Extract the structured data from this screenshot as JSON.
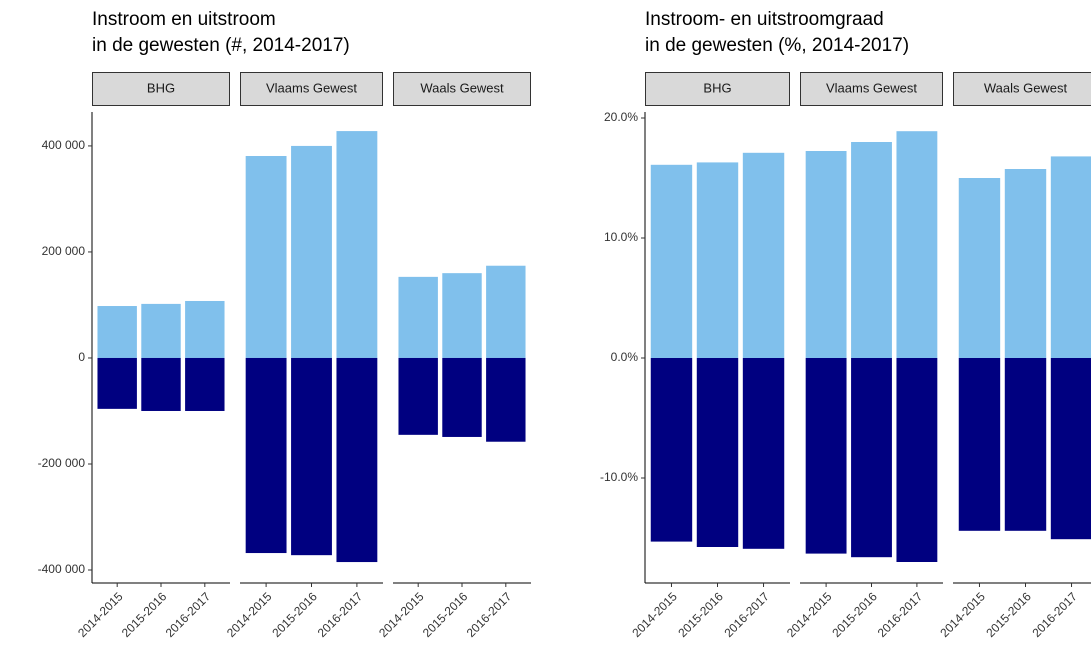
{
  "chart_data": [
    {
      "type": "bar",
      "title": [
        "Instroom en uitstroom",
        "in de gewesten (#, 2014-2017)"
      ],
      "ylim": [
        -424500,
        464000
      ],
      "yticks": [
        {
          "value": -400000,
          "label": "-400 000"
        },
        {
          "value": -200000,
          "label": "-200 000"
        },
        0,
        {
          "value": 200000,
          "label": "200 000"
        },
        {
          "value": 400000,
          "label": "400 000"
        }
      ],
      "grid": false,
      "panels": [
        {
          "strip": "BHG",
          "categories": [
            "2014-2015",
            "2015-2016",
            "2016-2017"
          ],
          "series": [
            {
              "color": "#80c0ec",
              "values": [
                98000,
                102000,
                107500
              ]
            },
            {
              "color": "#000080",
              "values": [
                -96000,
                -100000,
                -100000
              ]
            }
          ]
        },
        {
          "strip": "Vlaams Gewest",
          "categories": [
            "2014-2015",
            "2015-2016",
            "2016-2017"
          ],
          "series": [
            {
              "color": "#80c0ec",
              "values": [
                381000,
                400000,
                428000
              ]
            },
            {
              "color": "#000080",
              "values": [
                -368000,
                -372000,
                -385000
              ]
            }
          ]
        },
        {
          "strip": "Waals Gewest",
          "categories": [
            "2014-2015",
            "2015-2016",
            "2016-2017"
          ],
          "series": [
            {
              "color": "#80c0ec",
              "values": [
                153000,
                160000,
                174000
              ]
            },
            {
              "color": "#000080",
              "values": [
                -145000,
                -149000,
                -158000
              ]
            }
          ]
        }
      ]
    },
    {
      "type": "bar",
      "title": [
        "Instroom- en uitstroomgraad",
        "in de gewesten (%, 2014-2017)"
      ],
      "ylim": [
        -18.75,
        20.5
      ],
      "yticks": [
        {
          "value": -10,
          "label": "-10.0%"
        },
        {
          "value": 0,
          "label": "0.0%"
        },
        {
          "value": 10,
          "label": "10.0%"
        },
        {
          "value": 20,
          "label": "20.0%"
        }
      ],
      "grid": false,
      "panels": [
        {
          "strip": "BHG",
          "categories": [
            "2014-2015",
            "2015-2016",
            "2016-2017"
          ],
          "series": [
            {
              "color": "#80c0ec",
              "values": [
                16.1,
                16.3,
                17.1
              ]
            },
            {
              "color": "#000080",
              "values": [
                -15.3,
                -15.75,
                -15.9
              ]
            }
          ]
        },
        {
          "strip": "Vlaams Gewest",
          "categories": [
            "2014-2015",
            "2015-2016",
            "2016-2017"
          ],
          "series": [
            {
              "color": "#80c0ec",
              "values": [
                17.25,
                18.0,
                18.9
              ]
            },
            {
              "color": "#000080",
              "values": [
                -16.3,
                -16.6,
                -17.0
              ]
            }
          ]
        },
        {
          "strip": "Waals Gewest",
          "categories": [
            "2014-2015",
            "2015-2016",
            "2016-2017"
          ],
          "series": [
            {
              "color": "#80c0ec",
              "values": [
                15.0,
                15.75,
                16.8
              ]
            },
            {
              "color": "#000080",
              "values": [
                -14.4,
                -14.4,
                -15.1
              ]
            }
          ]
        }
      ]
    }
  ]
}
